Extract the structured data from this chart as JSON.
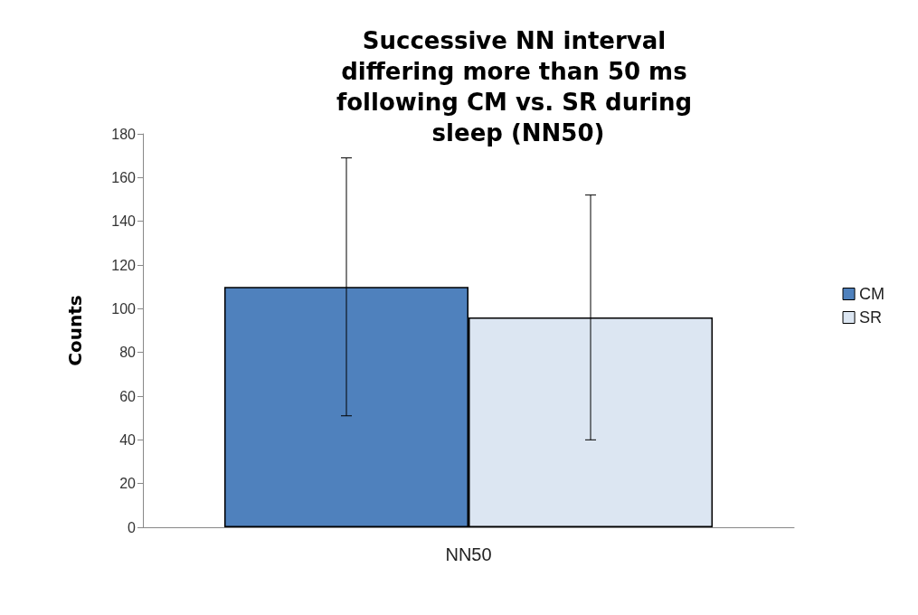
{
  "chart_data": {
    "type": "bar",
    "title": "Successive NN interval differing more than 50 ms following CM vs. SR during sleep (NN50)",
    "ylabel": "Counts",
    "categories": [
      "NN50"
    ],
    "series": [
      {
        "name": "CM",
        "color": "#4f81bd",
        "values": [
          110
        ],
        "errors": [
          [
            51,
            169
          ]
        ]
      },
      {
        "name": "SR",
        "color": "#dce6f2",
        "values": [
          96
        ],
        "errors": [
          [
            40,
            152
          ]
        ]
      }
    ],
    "ylim": [
      0,
      180
    ],
    "yticks": [
      0,
      20,
      40,
      60,
      80,
      100,
      120,
      140,
      160,
      180
    ],
    "grid": false,
    "legend": "right"
  }
}
